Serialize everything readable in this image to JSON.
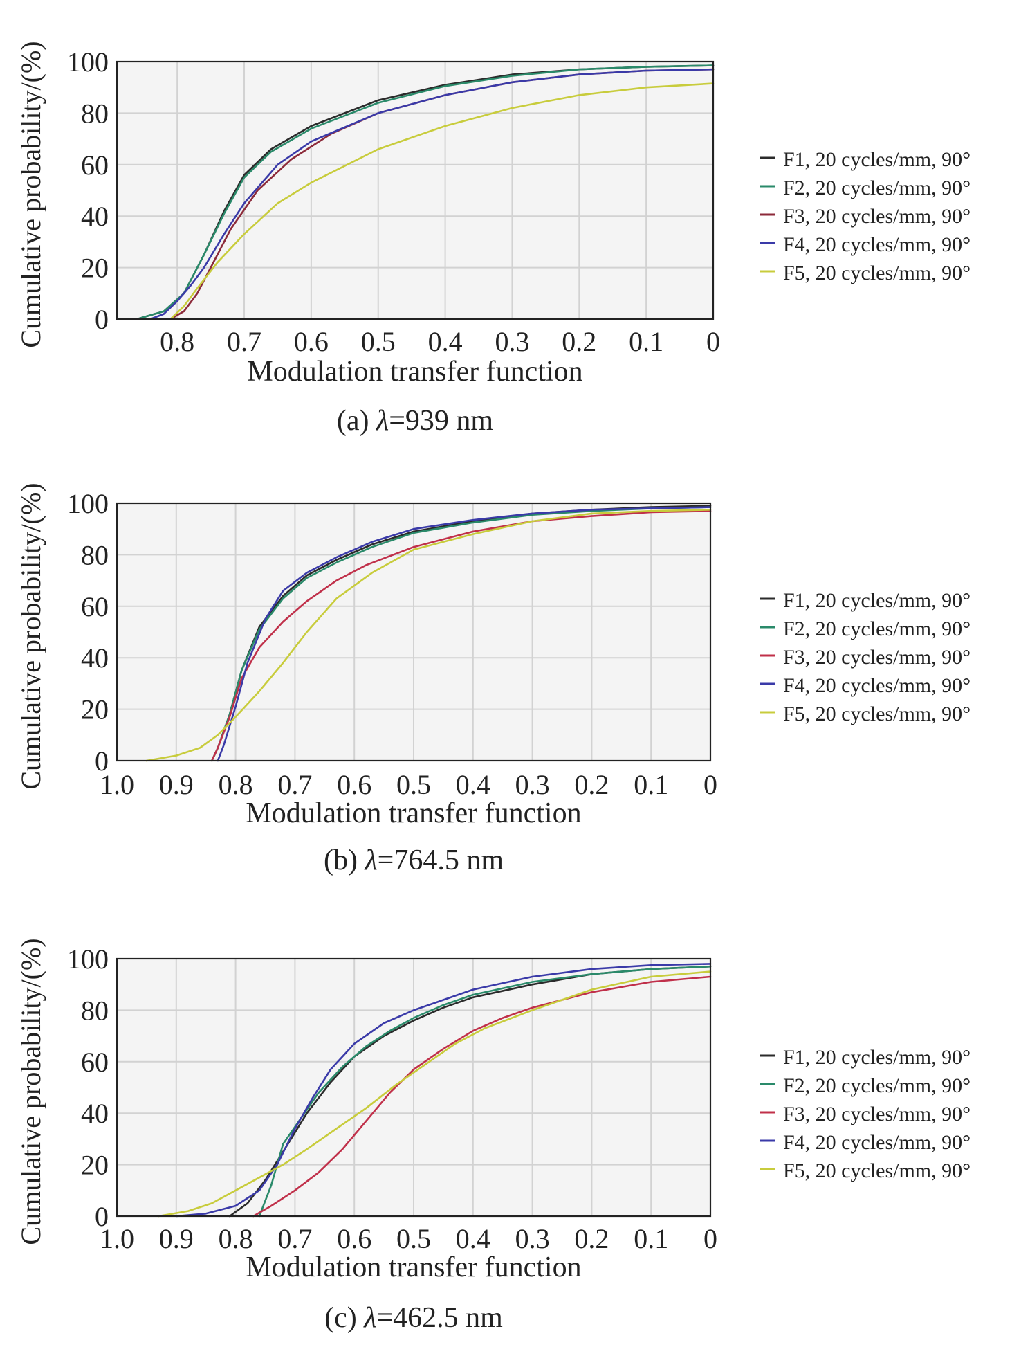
{
  "chart_data": [
    {
      "type": "line",
      "panel": "a",
      "caption_prefix": "(a) ",
      "caption_symbol": "λ",
      "caption_suffix": "=939 nm",
      "xlabel": "Modulation transfer function",
      "ylabel": "Cumulative probability/(%)",
      "xlim": [
        0.89,
        0
      ],
      "ylim": [
        0,
        100
      ],
      "xticks": [
        0.8,
        0.7,
        0.6,
        0.5,
        0.4,
        0.3,
        0.2,
        0.1,
        0
      ],
      "xtick_labels": [
        "0.8",
        "0.7",
        "0.6",
        "0.5",
        "0.4",
        "0.3",
        "0.2",
        "0.1",
        "0"
      ],
      "yticks": [
        0,
        20,
        40,
        60,
        80,
        100
      ],
      "ytick_labels": [
        "0",
        "20",
        "40",
        "60",
        "80",
        "100"
      ],
      "grid": true,
      "legend_position": "right",
      "series": [
        {
          "name": "F1, 20 cycles/mm, 90°",
          "color": "#2b2b2b",
          "x": [
            0.86,
            0.82,
            0.79,
            0.76,
            0.73,
            0.7,
            0.66,
            0.6,
            0.5,
            0.4,
            0.3,
            0.2,
            0.1,
            0
          ],
          "y": [
            0,
            3,
            10,
            25,
            42,
            56,
            66,
            75,
            85,
            91,
            95,
            97,
            98,
            98.5
          ]
        },
        {
          "name": "F2, 20 cycles/mm, 90°",
          "color": "#2a8a6a",
          "x": [
            0.86,
            0.82,
            0.79,
            0.76,
            0.73,
            0.7,
            0.66,
            0.6,
            0.5,
            0.4,
            0.3,
            0.2,
            0.1,
            0
          ],
          "y": [
            0,
            3,
            10,
            25,
            41,
            55,
            65,
            74,
            84,
            90.5,
            94.5,
            97,
            98,
            98.5
          ]
        },
        {
          "name": "F3, 20 cycles/mm, 90°",
          "color": "#8c2a3a",
          "x": [
            0.81,
            0.79,
            0.77,
            0.75,
            0.72,
            0.68,
            0.63,
            0.57,
            0.5,
            0.4,
            0.3,
            0.2,
            0.1,
            0
          ],
          "y": [
            0,
            3,
            10,
            20,
            35,
            50,
            62,
            72,
            80,
            87,
            92,
            95,
            96.5,
            97
          ]
        },
        {
          "name": "F4, 20 cycles/mm, 90°",
          "color": "#3a3aa8",
          "x": [
            0.84,
            0.82,
            0.8,
            0.78,
            0.76,
            0.73,
            0.7,
            0.65,
            0.6,
            0.5,
            0.4,
            0.3,
            0.2,
            0.1,
            0
          ],
          "y": [
            0,
            2,
            7,
            13,
            20,
            33,
            45,
            60,
            69,
            80,
            87,
            92,
            95,
            96.5,
            97
          ]
        },
        {
          "name": "F5, 20 cycles/mm, 90°",
          "color": "#c8cc3c",
          "x": [
            0.81,
            0.79,
            0.77,
            0.74,
            0.7,
            0.65,
            0.6,
            0.5,
            0.4,
            0.3,
            0.2,
            0.1,
            0
          ],
          "y": [
            0,
            5,
            12,
            22,
            33,
            45,
            53,
            66,
            75,
            82,
            87,
            90,
            91.5
          ]
        }
      ]
    },
    {
      "type": "line",
      "panel": "b",
      "caption_prefix": "(b) ",
      "caption_symbol": "λ",
      "caption_suffix": "=764.5 nm",
      "xlabel": "Modulation transfer function",
      "ylabel": "Cumulative probability/(%)",
      "xlim": [
        1.0,
        0
      ],
      "ylim": [
        0,
        100
      ],
      "xticks": [
        1.0,
        0.9,
        0.8,
        0.7,
        0.6,
        0.5,
        0.4,
        0.3,
        0.2,
        0.1,
        0
      ],
      "xtick_labels": [
        "1.0",
        "0.9",
        "0.8",
        "0.7",
        "0.6",
        "0.5",
        "0.4",
        "0.3",
        "0.2",
        "0.1",
        "0"
      ],
      "yticks": [
        0,
        20,
        40,
        60,
        80,
        100
      ],
      "ytick_labels": [
        "0",
        "20",
        "40",
        "60",
        "80",
        "100"
      ],
      "grid": true,
      "legend_position": "right",
      "series": [
        {
          "name": "F1, 20 cycles/mm, 90°",
          "color": "#2b2b2b",
          "x": [
            0.84,
            0.83,
            0.81,
            0.79,
            0.76,
            0.72,
            0.68,
            0.63,
            0.57,
            0.5,
            0.4,
            0.3,
            0.2,
            0.1,
            0
          ],
          "y": [
            0,
            5,
            18,
            35,
            52,
            64,
            72,
            78,
            84,
            89,
            93,
            96,
            97.5,
            98.5,
            99
          ]
        },
        {
          "name": "F2, 20 cycles/mm, 90°",
          "color": "#2a8a6a",
          "x": [
            0.84,
            0.83,
            0.81,
            0.79,
            0.76,
            0.72,
            0.68,
            0.63,
            0.57,
            0.5,
            0.4,
            0.3,
            0.2,
            0.1,
            0
          ],
          "y": [
            0,
            5,
            18,
            35,
            51,
            63,
            71,
            77,
            83,
            88.5,
            92.5,
            95.5,
            97,
            98,
            98.5
          ]
        },
        {
          "name": "F3, 20 cycles/mm, 90°",
          "color": "#c0304a",
          "x": [
            0.84,
            0.83,
            0.81,
            0.79,
            0.76,
            0.72,
            0.68,
            0.63,
            0.58,
            0.5,
            0.4,
            0.3,
            0.2,
            0.1,
            0
          ],
          "y": [
            0,
            5,
            17,
            32,
            44,
            54,
            62,
            70,
            76,
            83,
            89,
            93,
            95,
            96.5,
            97
          ]
        },
        {
          "name": "F4, 20 cycles/mm, 90°",
          "color": "#3a3aa8",
          "x": [
            0.83,
            0.82,
            0.8,
            0.78,
            0.75,
            0.72,
            0.68,
            0.63,
            0.57,
            0.5,
            0.4,
            0.3,
            0.2,
            0.1,
            0
          ],
          "y": [
            0,
            6,
            21,
            38,
            55,
            66,
            73,
            79,
            85,
            90,
            93.5,
            96,
            97.5,
            98,
            98.5
          ]
        },
        {
          "name": "F5, 20 cycles/mm, 90°",
          "color": "#c8cc3c",
          "x": [
            0.95,
            0.9,
            0.86,
            0.83,
            0.8,
            0.76,
            0.72,
            0.68,
            0.63,
            0.57,
            0.5,
            0.4,
            0.3,
            0.2,
            0.1,
            0
          ],
          "y": [
            0,
            2,
            5,
            10,
            17,
            27,
            38,
            50,
            63,
            73,
            82,
            88,
            93,
            96,
            97,
            97.5
          ]
        }
      ]
    },
    {
      "type": "line",
      "panel": "c",
      "caption_prefix": "(c) ",
      "caption_symbol": "λ",
      "caption_suffix": "=462.5 nm",
      "xlabel": "Modulation transfer function",
      "ylabel": "Cumulative probability/(%)",
      "xlim": [
        1.0,
        0
      ],
      "ylim": [
        0,
        100
      ],
      "xticks": [
        1.0,
        0.9,
        0.8,
        0.7,
        0.6,
        0.5,
        0.4,
        0.3,
        0.2,
        0.1,
        0
      ],
      "xtick_labels": [
        "1.0",
        "0.9",
        "0.8",
        "0.7",
        "0.6",
        "0.5",
        "0.4",
        "0.3",
        "0.2",
        "0.1",
        "0"
      ],
      "yticks": [
        0,
        20,
        40,
        60,
        80,
        100
      ],
      "ytick_labels": [
        "0",
        "20",
        "40",
        "60",
        "80",
        "100"
      ],
      "grid": true,
      "legend_position": "right",
      "series": [
        {
          "name": "F1, 20 cycles/mm, 90°",
          "color": "#2b2b2b",
          "x": [
            0.81,
            0.78,
            0.75,
            0.72,
            0.68,
            0.64,
            0.6,
            0.55,
            0.5,
            0.45,
            0.4,
            0.3,
            0.2,
            0.1,
            0
          ],
          "y": [
            0,
            5,
            14,
            25,
            40,
            52,
            62,
            70,
            76,
            81,
            85,
            90,
            94,
            96,
            97
          ]
        },
        {
          "name": "F2, 20 cycles/mm, 90°",
          "color": "#2a8a6a",
          "x": [
            0.76,
            0.74,
            0.72,
            0.69,
            0.66,
            0.62,
            0.58,
            0.54,
            0.5,
            0.45,
            0.4,
            0.3,
            0.2,
            0.1,
            0
          ],
          "y": [
            0,
            12,
            28,
            38,
            48,
            58,
            66,
            72,
            77,
            82,
            86,
            91,
            94,
            96,
            97
          ]
        },
        {
          "name": "F3, 20 cycles/mm, 90°",
          "color": "#c0304a",
          "x": [
            0.77,
            0.74,
            0.7,
            0.66,
            0.62,
            0.58,
            0.54,
            0.5,
            0.45,
            0.4,
            0.35,
            0.3,
            0.2,
            0.1,
            0
          ],
          "y": [
            0,
            4,
            10,
            17,
            26,
            37,
            48,
            57,
            65,
            72,
            77,
            81,
            87,
            91,
            93
          ]
        },
        {
          "name": "F4, 20 cycles/mm, 90°",
          "color": "#3a3aa8",
          "x": [
            0.9,
            0.85,
            0.8,
            0.76,
            0.73,
            0.7,
            0.67,
            0.64,
            0.6,
            0.55,
            0.5,
            0.45,
            0.4,
            0.3,
            0.2,
            0.1,
            0
          ],
          "y": [
            0,
            1,
            4,
            10,
            20,
            34,
            46,
            57,
            67,
            75,
            80,
            84,
            88,
            93,
            96,
            97.5,
            98
          ]
        },
        {
          "name": "F5, 20 cycles/mm, 90°",
          "color": "#c8cc3c",
          "x": [
            0.93,
            0.88,
            0.84,
            0.8,
            0.76,
            0.72,
            0.68,
            0.63,
            0.58,
            0.53,
            0.48,
            0.43,
            0.38,
            0.3,
            0.2,
            0.1,
            0
          ],
          "y": [
            0,
            2,
            5,
            10,
            15,
            20,
            26,
            34,
            42,
            51,
            59,
            67,
            73,
            80,
            88,
            93,
            95
          ]
        }
      ]
    }
  ]
}
